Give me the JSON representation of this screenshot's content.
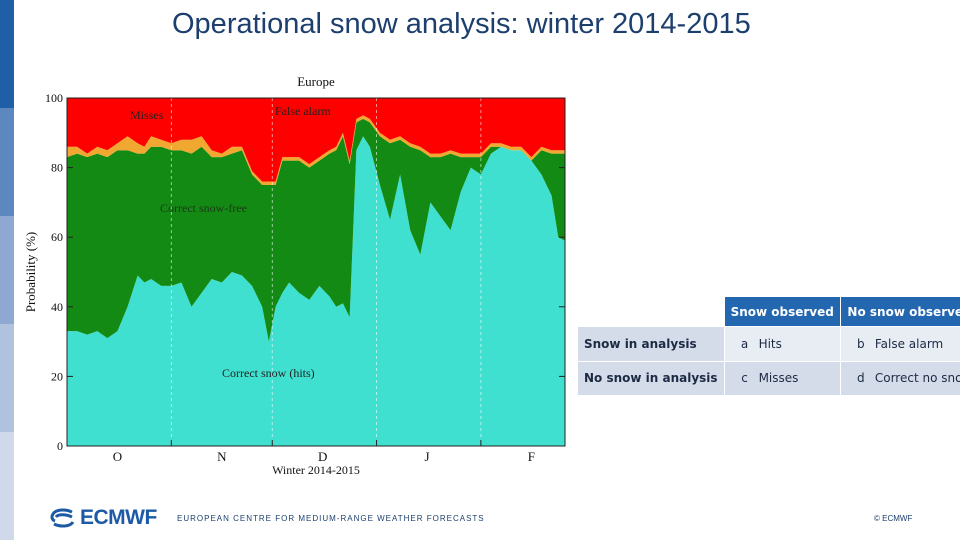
{
  "slide": {
    "title": "Operational snow analysis: winter 2014-2015",
    "footer_text": "EUROPEAN CENTRE FOR MEDIUM-RANGE WEATHER FORECASTS",
    "copyright": "© ECMWF",
    "logo_text": "ECMWF",
    "colors": {
      "title": "#1c3f6e",
      "brand_blue": "#1c5aa6",
      "table_header": "#2367b0",
      "table_row": "#d5dce9"
    }
  },
  "chart_data": {
    "type": "area",
    "title": "Europe",
    "xlabel": "Winter 2014-2015",
    "ylabel": "Probability (%)",
    "ylim": [
      0,
      100
    ],
    "xlim": [
      0,
      148
    ],
    "yticks": [
      0,
      20,
      40,
      60,
      80,
      100
    ],
    "xticks": [
      {
        "label": "O",
        "day": 15
      },
      {
        "label": "N",
        "day": 46
      },
      {
        "label": "D",
        "day": 76
      },
      {
        "label": "J",
        "day": 107
      },
      {
        "label": "F",
        "day": 138
      }
    ],
    "month_boundaries": [
      31,
      61,
      92,
      123
    ],
    "x_days": [
      0,
      3,
      6,
      9,
      12,
      15,
      18,
      21,
      23,
      25,
      28,
      31,
      34,
      37,
      40,
      43,
      46,
      49,
      52,
      55,
      58,
      60,
      62,
      64,
      66,
      69,
      72,
      75,
      78,
      80,
      82,
      84,
      86,
      88,
      90,
      93,
      96,
      99,
      102,
      105,
      108,
      111,
      114,
      117,
      120,
      123,
      126,
      129,
      132,
      135,
      138,
      141,
      144,
      146,
      148
    ],
    "series": [
      {
        "name": "Correct snow (hits)",
        "color": "#40e0d0",
        "values": [
          33,
          33,
          32,
          33,
          31,
          33,
          40,
          49,
          47,
          48,
          46,
          46,
          47,
          40,
          44,
          48,
          47,
          50,
          49,
          46,
          40,
          30,
          40,
          44,
          47,
          44,
          42,
          46,
          43,
          40,
          41,
          37,
          85,
          89,
          86,
          75,
          65,
          78,
          62,
          55,
          70,
          66,
          62,
          73,
          80,
          78,
          84,
          86,
          85,
          85,
          82,
          78,
          72,
          60,
          59
        ]
      },
      {
        "name": "Correct no snow",
        "color": "#138a13",
        "values": [
          50,
          51,
          51,
          51,
          52,
          52,
          45,
          35,
          37,
          38,
          40,
          39,
          38,
          44,
          42,
          35,
          36,
          34,
          36,
          32,
          35,
          45,
          35,
          38,
          35,
          38,
          38,
          36,
          41,
          45,
          48,
          44,
          8,
          5,
          7,
          14,
          22,
          10,
          24,
          30,
          13,
          17,
          22,
          10,
          3,
          5,
          2,
          0,
          0,
          0,
          0,
          7,
          12,
          24,
          25
        ]
      },
      {
        "name": "Misses",
        "color": "#f0a830",
        "values": [
          3,
          2,
          1,
          2,
          2,
          2,
          4,
          3,
          2,
          3,
          2,
          2,
          3,
          4,
          3,
          2,
          1,
          2,
          1,
          1,
          1,
          1,
          1,
          1,
          1,
          1,
          1,
          1,
          1,
          1,
          1,
          1,
          1,
          1,
          1,
          1,
          1,
          1,
          1,
          1,
          1,
          1,
          1,
          1,
          1,
          1,
          1,
          1,
          1,
          1,
          1,
          1,
          1,
          1,
          1
        ]
      },
      {
        "name": "False alarm",
        "color": "#ff0000",
        "values": [
          14,
          14,
          16,
          14,
          15,
          13,
          11,
          13,
          14,
          11,
          12,
          13,
          12,
          12,
          11,
          15,
          16,
          14,
          14,
          21,
          24,
          24,
          24,
          17,
          17,
          17,
          19,
          17,
          15,
          14,
          10,
          18,
          6,
          5,
          6,
          10,
          12,
          11,
          13,
          14,
          16,
          16,
          15,
          16,
          16,
          16,
          13,
          13,
          14,
          14,
          17,
          14,
          15,
          15,
          15
        ]
      }
    ],
    "annotations": [
      "Misses",
      "False alarm",
      "Correct snow-free",
      "Correct snow (hits)"
    ]
  },
  "table": {
    "headers": [
      "Snow observed",
      "No snow observed"
    ],
    "rows": [
      {
        "label": "Snow in analysis",
        "cells": [
          {
            "letter": "a",
            "text": "Hits"
          },
          {
            "letter": "b",
            "text": "False alarm"
          }
        ]
      },
      {
        "label": "No snow in analysis",
        "cells": [
          {
            "letter": "c",
            "text": "Misses"
          },
          {
            "letter": "d",
            "text": "Correct no snow"
          }
        ]
      }
    ]
  }
}
